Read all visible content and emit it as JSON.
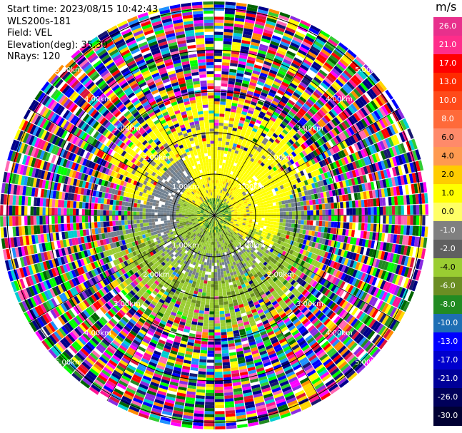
{
  "info": {
    "start_time": "Start time: 2023/08/15 10:42:43",
    "instrument": "WLS200s-181",
    "field": "Field: VEL",
    "elevation": "Elevation(deg): 35.30",
    "nrays": "NRays: 120"
  },
  "colorbar": {
    "unit": "m/s",
    "ticks": [
      "26.0",
      "21.0",
      "17.0",
      "13.0",
      "10.0",
      "8.0",
      "6.0",
      "4.0",
      "2.0",
      "1.0",
      "0.0",
      "-1.0",
      "-2.0",
      "-4.0",
      "-6.0",
      "-8.0",
      "-10.0",
      "-13.0",
      "-17.0",
      "-21.0",
      "-26.0",
      "-30.0"
    ],
    "colors": [
      "#e8308c",
      "#ff2d8a",
      "#ff0000",
      "#ff2a00",
      "#ff4a1a",
      "#ff6a3a",
      "#ff8a6a",
      "#ff9a50",
      "#ffcc00",
      "#ffff00",
      "#ffff66",
      "#808080",
      "#606060",
      "#9acd32",
      "#6b8e23",
      "#228b22",
      "#1e6eb4",
      "#0000ff",
      "#0000cd",
      "#000099",
      "#00005a",
      "#000033"
    ]
  },
  "range_rings": {
    "labels": [
      "5.00km",
      "4.00km",
      "3.00km",
      "2.00km",
      "1.00km"
    ]
  }
}
